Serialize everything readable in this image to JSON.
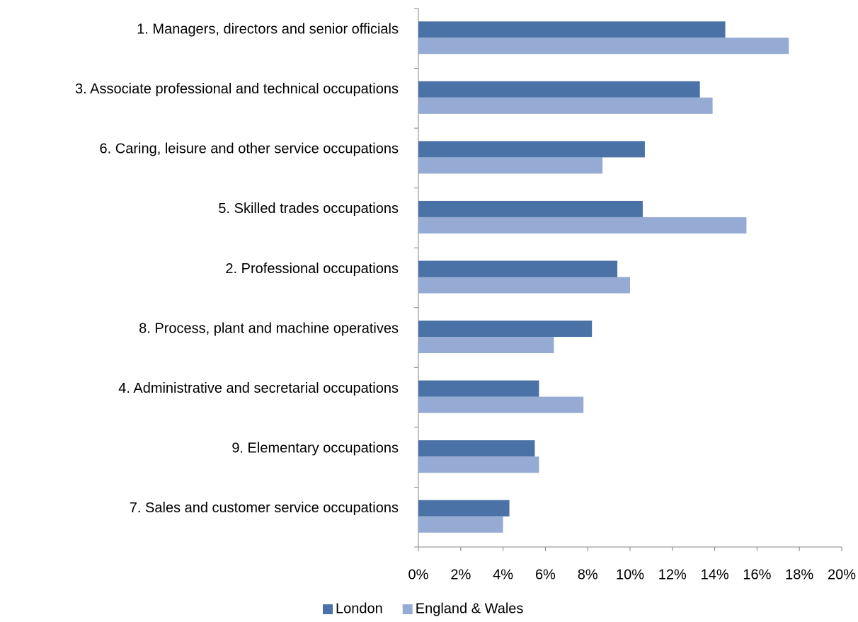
{
  "chart_data": {
    "type": "barh",
    "categories": [
      "1. Managers, directors and senior officials",
      "3. Associate professional and technical occupations",
      "6. Caring, leisure and other service occupations",
      "5. Skilled trades occupations",
      "2. Professional occupations",
      "8. Process, plant and machine operatives",
      "4. Administrative and secretarial occupations",
      "9. Elementary occupations",
      "7. Sales and customer service occupations"
    ],
    "series": [
      {
        "name": "London",
        "color": "#4a72a6",
        "values": [
          14.5,
          13.3,
          10.7,
          10.6,
          9.4,
          8.2,
          5.7,
          5.5,
          4.3
        ]
      },
      {
        "name": "England & Wales",
        "color": "#95abd3",
        "values": [
          17.5,
          13.9,
          8.7,
          15.5,
          10.0,
          6.4,
          7.8,
          5.7,
          4.0
        ]
      }
    ],
    "xlim": [
      0,
      20
    ],
    "xticks": [
      {
        "value": 0,
        "label": "0%"
      },
      {
        "value": 2,
        "label": "2%"
      },
      {
        "value": 4,
        "label": "4%"
      },
      {
        "value": 6,
        "label": "6%"
      },
      {
        "value": 8,
        "label": "8%"
      },
      {
        "value": 10,
        "label": "10%"
      },
      {
        "value": 12,
        "label": "12%"
      },
      {
        "value": 14,
        "label": "14%"
      },
      {
        "value": 16,
        "label": "16%"
      },
      {
        "value": 18,
        "label": "18%"
      },
      {
        "value": 20,
        "label": "20%"
      }
    ],
    "legend": "bottom"
  }
}
